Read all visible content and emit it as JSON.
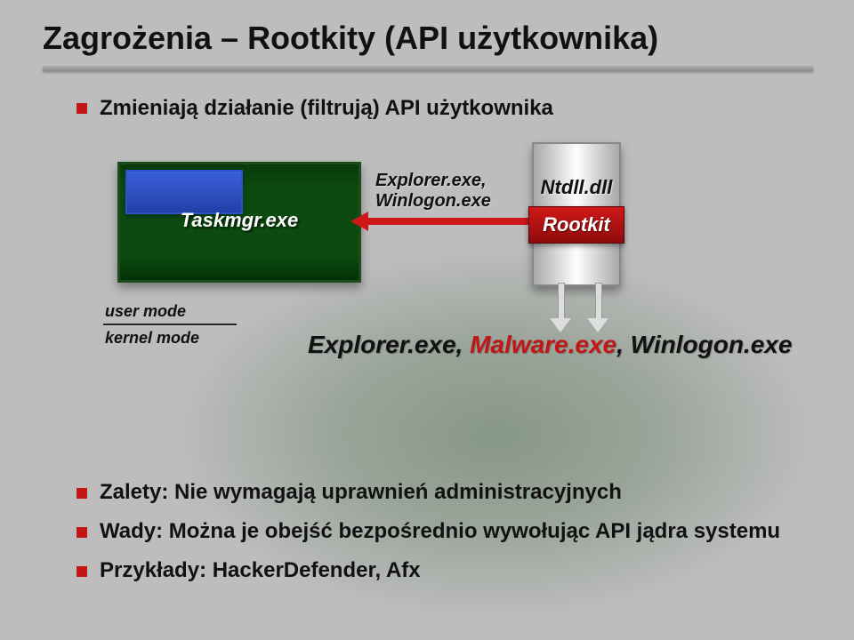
{
  "title": "Zagrożenia – Rootkity (API użytkownika)",
  "bullet_top": "Zmieniają działanie (filtrują) API użytkownika",
  "colors": {
    "bullet": "#c21616",
    "malware_text": "#c21616",
    "rootkit_bg_top": "#d01818",
    "rootkit_bg_bottom": "#8e0c0c",
    "taskmgr_bg": "#0c4a10",
    "inner_blue": "#2b52c8",
    "background": "#bdbdbd"
  },
  "diagram": {
    "taskmgr_label": "Taskmgr.exe",
    "explorer_small_line1": "Explorer.exe,",
    "explorer_small_line2": "Winlogon.exe",
    "ntdll_label": "Ntdll.dll",
    "rootkit_label": "Rootkit",
    "user_mode": "user mode",
    "kernel_mode": "kernel mode",
    "big_explorer": "Explorer.exe, ",
    "big_malware": "Malware.exe",
    "big_winlogon": ", Winlogon.exe"
  },
  "bottom": [
    "Zalety: Nie wymagają uprawnień administracyjnych",
    "Wady: Można je obejść bezpośrednio wywołując API jądra systemu",
    "Przykłady: HackerDefender, Afx"
  ],
  "fonts": {
    "title_pt": 36,
    "bullet_pt": 24,
    "diagram_label_pt": 22,
    "small_pt": 18,
    "bigline_pt": 28
  }
}
